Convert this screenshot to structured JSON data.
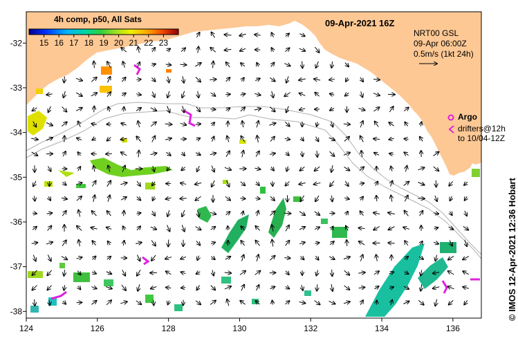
{
  "title": "09-Apr-2021 16Z",
  "colorbar": {
    "label": "4h comp, p50, All Sats",
    "ticks": [
      "15",
      "16",
      "17",
      "18",
      "19",
      "20",
      "21",
      "22",
      "23"
    ],
    "min": 14,
    "max": 24
  },
  "currents": {
    "line1": "NRT00 GSL",
    "line2": "09-Apr 06:00Z",
    "line3": "0.5m/s (1kt 24h)"
  },
  "argo": {
    "label": "Argo",
    "drifters_line1": "drifters@12h",
    "drifters_line2": "to 10/04-12Z",
    "color": "#e020e0"
  },
  "credit": "© IMOS 12-Apr-2021 12:36 Hobart",
  "axes": {
    "x_ticks": [
      "124",
      "126",
      "128",
      "130",
      "132",
      "134",
      "136"
    ],
    "y_ticks": [
      "-32",
      "-33",
      "-34",
      "-35",
      "-36",
      "-37",
      "-38"
    ],
    "lon_range": [
      124,
      136.8
    ],
    "lat_range": [
      -38.15,
      -31.3
    ]
  },
  "colors": {
    "land": "#fdc894",
    "ocean": "#ffffff",
    "bathymetry": "#b0b0b0"
  }
}
